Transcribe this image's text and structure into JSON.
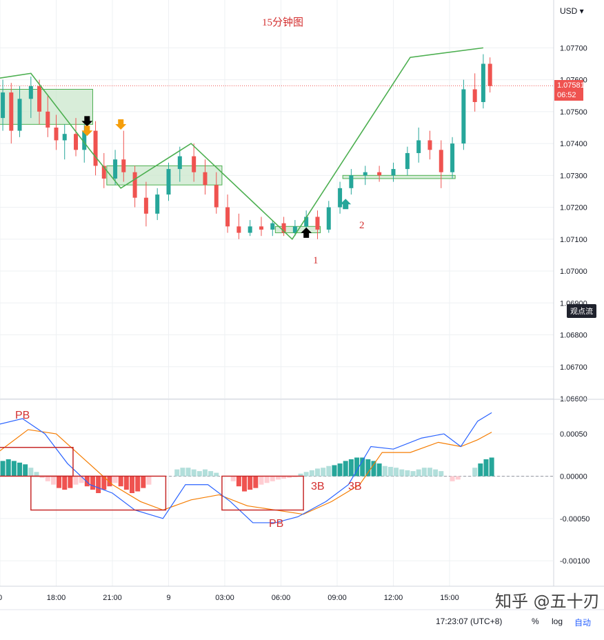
{
  "header": {
    "currency_label": "USD ▾"
  },
  "price_scale": {
    "last_price": "1.07581",
    "countdown": "06:52",
    "float_label": "观点流"
  },
  "footer": {
    "clock": "17:23:07 (UTC+8)",
    "percent_btn": "%",
    "log_btn": "log",
    "auto_btn": "自动"
  },
  "watermark": "知乎 @五十刃",
  "annotations": {
    "title": "15分钟图",
    "label_1": "1",
    "label_2": "2",
    "pb_top": "PB",
    "pb_bottom": "PB",
    "b3_a": "3B",
    "b3_b": "3B"
  },
  "colors": {
    "up": "#26a69a",
    "down": "#ef5350",
    "zigzag": "#4caf50",
    "box_fill": "#c8e6c9",
    "macd_line": "#2962ff",
    "signal_line": "#f57c00",
    "pb_box": "#c62828",
    "annotation": "#d32f2f"
  },
  "chart_data": [
    {
      "type": "candlestick",
      "title": "15分钟图",
      "ylim": [
        1.066,
        1.0785
      ],
      "y_ticks": [
        "1.07700",
        "1.07600",
        "1.07500",
        "1.07400",
        "1.07300",
        "1.07200",
        "1.07100",
        "1.07000",
        "1.06900",
        "1.06800",
        "1.06700",
        "1.06600"
      ],
      "x_ticks": [
        "0",
        "18:00",
        "21:00",
        "9",
        "03:00",
        "06:00",
        "09:00",
        "12:00",
        "15:00"
      ],
      "last_price": 1.07581,
      "zigzag": [
        [
          -0.2,
          1.076
        ],
        [
          0.55,
          1.0762
        ],
        [
          1.6,
          1.0738
        ],
        [
          2.15,
          1.0726
        ],
        [
          3.4,
          1.074
        ],
        [
          5.2,
          1.071
        ],
        [
          7.3,
          1.0767
        ],
        [
          8.6,
          1.077
        ]
      ],
      "consolidation_boxes": [
        {
          "x0": -0.3,
          "x1": 1.65,
          "y0": 1.0746,
          "y1": 1.0757
        },
        {
          "x0": 1.9,
          "x1": 3.95,
          "y0": 1.0727,
          "y1": 1.0733
        },
        {
          "x0": 4.9,
          "x1": 5.7,
          "y0": 1.0712,
          "y1": 1.0714
        },
        {
          "x0": 6.1,
          "x1": 8.1,
          "y0": 1.0729,
          "y1": 1.073
        }
      ],
      "arrows": [
        {
          "x": 1.55,
          "y": 1.0746,
          "dir": "down",
          "color": "black"
        },
        {
          "x": 1.55,
          "y": 1.0743,
          "dir": "down",
          "color": "orange"
        },
        {
          "x": 2.15,
          "y": 1.0745,
          "dir": "down",
          "color": "orange"
        },
        {
          "x": 5.45,
          "y": 1.0713,
          "dir": "up",
          "color": "black"
        },
        {
          "x": 6.15,
          "y": 1.0722,
          "dir": "up",
          "color": "#26a69a"
        }
      ],
      "candles": [
        [
          -0.1,
          1.074,
          1.0752,
          1.0735,
          1.0748
        ],
        [
          0.05,
          1.0748,
          1.076,
          1.0744,
          1.0756
        ],
        [
          0.2,
          1.0756,
          1.0759,
          1.074,
          1.0744
        ],
        [
          0.35,
          1.0744,
          1.0758,
          1.0742,
          1.0754
        ],
        [
          0.55,
          1.0754,
          1.0761,
          1.0748,
          1.0758
        ],
        [
          0.7,
          1.0758,
          1.076,
          1.0746,
          1.075
        ],
        [
          0.85,
          1.075,
          1.0755,
          1.0742,
          1.0745
        ],
        [
          1.0,
          1.0745,
          1.0749,
          1.0738,
          1.0741
        ],
        [
          1.15,
          1.0741,
          1.0746,
          1.0735,
          1.0743
        ],
        [
          1.35,
          1.0743,
          1.0748,
          1.0736,
          1.0738
        ],
        [
          1.5,
          1.0738,
          1.0746,
          1.0734,
          1.0744
        ],
        [
          1.7,
          1.0744,
          1.0747,
          1.073,
          1.0733
        ],
        [
          1.85,
          1.0733,
          1.0737,
          1.0726,
          1.0729
        ],
        [
          2.05,
          1.0729,
          1.0738,
          1.0727,
          1.0735
        ],
        [
          2.2,
          1.0735,
          1.0744,
          1.0728,
          1.0731
        ],
        [
          2.4,
          1.0731,
          1.0733,
          1.072,
          1.0723
        ],
        [
          2.6,
          1.0723,
          1.0728,
          1.0714,
          1.0718
        ],
        [
          2.8,
          1.0718,
          1.0726,
          1.0716,
          1.0724
        ],
        [
          3.0,
          1.0724,
          1.0734,
          1.0722,
          1.0732
        ],
        [
          3.2,
          1.0732,
          1.0739,
          1.0728,
          1.0736
        ],
        [
          3.45,
          1.0736,
          1.074,
          1.0728,
          1.0731
        ],
        [
          3.65,
          1.0731,
          1.0735,
          1.0724,
          1.0727
        ],
        [
          3.85,
          1.0727,
          1.0731,
          1.0718,
          1.072
        ],
        [
          4.05,
          1.072,
          1.0724,
          1.0712,
          1.0714
        ],
        [
          4.25,
          1.0714,
          1.0718,
          1.071,
          1.0712
        ],
        [
          4.45,
          1.0712,
          1.0716,
          1.0711,
          1.0714
        ],
        [
          4.65,
          1.0714,
          1.0717,
          1.0711,
          1.0713
        ],
        [
          4.85,
          1.0713,
          1.0716,
          1.0711,
          1.0715
        ],
        [
          5.05,
          1.0715,
          1.0717,
          1.0711,
          1.0712
        ],
        [
          5.25,
          1.0712,
          1.0716,
          1.0711,
          1.0714
        ],
        [
          5.45,
          1.0714,
          1.0719,
          1.0712,
          1.0717
        ],
        [
          5.65,
          1.0717,
          1.0719,
          1.071,
          1.0713
        ],
        [
          5.85,
          1.0713,
          1.0722,
          1.0712,
          1.072
        ],
        [
          6.05,
          1.072,
          1.0728,
          1.0718,
          1.0726
        ],
        [
          6.25,
          1.0726,
          1.0732,
          1.0724,
          1.073
        ],
        [
          6.5,
          1.073,
          1.0733,
          1.0727,
          1.0731
        ],
        [
          6.75,
          1.0731,
          1.0733,
          1.0728,
          1.073
        ],
        [
          7.0,
          1.073,
          1.0734,
          1.0728,
          1.0732
        ],
        [
          7.25,
          1.0732,
          1.0739,
          1.073,
          1.0737
        ],
        [
          7.45,
          1.0737,
          1.0745,
          1.0734,
          1.0741
        ],
        [
          7.65,
          1.0741,
          1.0744,
          1.0735,
          1.0738
        ],
        [
          7.85,
          1.0738,
          1.0741,
          1.0726,
          1.0731
        ],
        [
          8.05,
          1.0731,
          1.0742,
          1.0729,
          1.074
        ],
        [
          8.25,
          1.074,
          1.076,
          1.0738,
          1.0757
        ],
        [
          8.45,
          1.0757,
          1.0762,
          1.075,
          1.0753
        ],
        [
          8.6,
          1.0753,
          1.0768,
          1.0751,
          1.0765
        ],
        [
          8.72,
          1.0765,
          1.0767,
          1.0756,
          1.0758
        ]
      ]
    },
    {
      "type": "macd",
      "ylim": [
        -0.0013,
        0.0009
      ],
      "y_ticks": [
        "0.00050",
        "0.00000",
        "-0.00050",
        "-0.00100"
      ],
      "macd_line": [
        [
          -0.1,
          0.0006
        ],
        [
          0.4,
          0.00068
        ],
        [
          0.8,
          0.0005
        ],
        [
          1.2,
          0.00015
        ],
        [
          1.6,
          -0.0001
        ],
        [
          2.0,
          -0.0002
        ],
        [
          2.4,
          -0.0004
        ],
        [
          2.9,
          -0.0005
        ],
        [
          3.3,
          -0.0001
        ],
        [
          3.7,
          -0.0001
        ],
        [
          4.1,
          -0.0003
        ],
        [
          4.5,
          -0.00055
        ],
        [
          4.9,
          -0.00055
        ],
        [
          5.3,
          -0.00048
        ],
        [
          5.8,
          -0.0003
        ],
        [
          6.2,
          -0.0001
        ],
        [
          6.6,
          0.00035
        ],
        [
          7.0,
          0.00032
        ],
        [
          7.5,
          0.00045
        ],
        [
          7.9,
          0.0005
        ],
        [
          8.2,
          0.00035
        ],
        [
          8.5,
          0.00065
        ],
        [
          8.75,
          0.00075
        ]
      ],
      "signal_line": [
        [
          -0.1,
          0.00025
        ],
        [
          0.5,
          0.00055
        ],
        [
          1.0,
          0.0005
        ],
        [
          1.5,
          0.0002
        ],
        [
          2.0,
          -0.0001
        ],
        [
          2.5,
          -0.0003
        ],
        [
          2.9,
          -0.0004
        ],
        [
          3.4,
          -0.00028
        ],
        [
          3.9,
          -0.00022
        ],
        [
          4.4,
          -0.00035
        ],
        [
          4.9,
          -0.0004
        ],
        [
          5.4,
          -0.00045
        ],
        [
          5.9,
          -0.0003
        ],
        [
          6.4,
          -0.0001
        ],
        [
          6.8,
          0.00028
        ],
        [
          7.3,
          0.00028
        ],
        [
          7.8,
          0.0004
        ],
        [
          8.2,
          0.00035
        ],
        [
          8.5,
          0.00043
        ],
        [
          8.75,
          0.00052
        ]
      ],
      "histogram": [
        [
          -0.1,
          0.00015
        ],
        [
          0.05,
          0.00018
        ],
        [
          0.15,
          0.0002
        ],
        [
          0.25,
          0.00018
        ],
        [
          0.35,
          0.00016
        ],
        [
          0.45,
          0.00014
        ],
        [
          0.55,
          0.0001
        ],
        [
          0.65,
          5e-05
        ],
        [
          0.75,
          -2e-05
        ],
        [
          0.85,
          -6e-05
        ],
        [
          0.95,
          -0.0001
        ],
        [
          1.05,
          -0.00014
        ],
        [
          1.15,
          -0.00016
        ],
        [
          1.25,
          -0.00014
        ],
        [
          1.35,
          -0.0001
        ],
        [
          1.45,
          -8e-05
        ],
        [
          1.55,
          -0.00012
        ],
        [
          1.65,
          -0.00016
        ],
        [
          1.75,
          -0.0002
        ],
        [
          1.85,
          -0.00016
        ],
        [
          1.95,
          -0.00012
        ],
        [
          2.05,
          -8e-05
        ],
        [
          2.15,
          -0.00012
        ],
        [
          2.25,
          -0.00016
        ],
        [
          2.35,
          -0.0002
        ],
        [
          2.45,
          -0.00018
        ],
        [
          2.55,
          -0.00014
        ],
        [
          2.65,
          -0.0001
        ],
        [
          3.15,
          8e-05
        ],
        [
          3.25,
          0.0001
        ],
        [
          3.35,
          0.0001
        ],
        [
          3.45,
          8e-05
        ],
        [
          3.55,
          6e-05
        ],
        [
          3.65,
          8e-05
        ],
        [
          3.75,
          6e-05
        ],
        [
          3.85,
          4e-05
        ],
        [
          4.15,
          -6e-05
        ],
        [
          4.25,
          -0.00012
        ],
        [
          4.35,
          -0.00018
        ],
        [
          4.45,
          -0.00016
        ],
        [
          4.55,
          -0.00014
        ],
        [
          4.65,
          -0.0001
        ],
        [
          4.75,
          -8e-05
        ],
        [
          4.85,
          -6e-05
        ],
        [
          4.95,
          -4e-05
        ],
        [
          5.05,
          -3e-05
        ],
        [
          5.15,
          -2e-05
        ],
        [
          5.25,
          -1e-05
        ],
        [
          5.35,
          3e-05
        ],
        [
          5.45,
          5e-05
        ],
        [
          5.55,
          7e-05
        ],
        [
          5.65,
          9e-05
        ],
        [
          5.75,
          0.0001
        ],
        [
          5.85,
          0.00012
        ],
        [
          5.95,
          0.00013
        ],
        [
          6.05,
          0.00015
        ],
        [
          6.15,
          0.00018
        ],
        [
          6.25,
          0.0002
        ],
        [
          6.35,
          0.00022
        ],
        [
          6.45,
          0.00022
        ],
        [
          6.55,
          0.0002
        ],
        [
          6.65,
          0.00018
        ],
        [
          6.75,
          0.00015
        ],
        [
          6.85,
          0.00012
        ],
        [
          6.95,
          0.00011
        ],
        [
          7.05,
          0.0001
        ],
        [
          7.15,
          8e-05
        ],
        [
          7.25,
          7e-05
        ],
        [
          7.35,
          6e-05
        ],
        [
          7.45,
          8e-05
        ],
        [
          7.55,
          0.0001
        ],
        [
          7.65,
          0.0001
        ],
        [
          7.75,
          8e-05
        ],
        [
          7.85,
          6e-05
        ],
        [
          8.05,
          -6e-05
        ],
        [
          8.15,
          -4e-05
        ],
        [
          8.45,
          0.0001
        ],
        [
          8.55,
          0.00015
        ],
        [
          8.65,
          0.0002
        ],
        [
          8.75,
          0.00022
        ]
      ],
      "pb_boxes": [
        {
          "x0": -0.1,
          "x1": 1.3,
          "y0": 0.0,
          "y1": 0.00034
        },
        {
          "x0": 0.55,
          "x1": 2.95,
          "y0": -0.0004,
          "y1": 0.0
        },
        {
          "x0": 3.95,
          "x1": 5.4,
          "y0": -0.0004,
          "y1": 0.0
        }
      ]
    }
  ]
}
